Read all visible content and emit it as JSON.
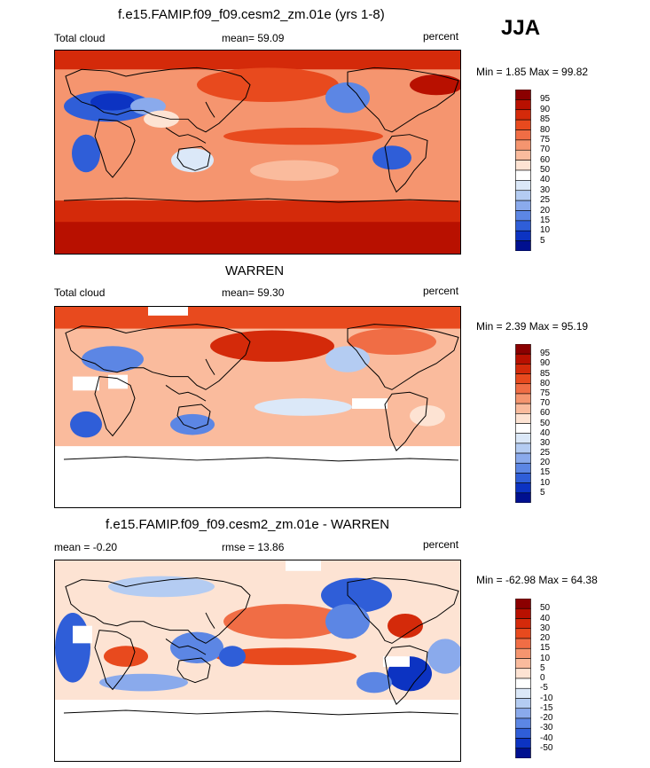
{
  "season": "JJA",
  "panels": [
    {
      "title": "f.e15.FAMIP.f09_f09.cesm2_zm.01e (yrs 1-8)",
      "left_label": "Total cloud",
      "center_label": "mean=  59.09",
      "right_label": "percent",
      "minmax": "Min =   1.85 Max =  99.82"
    },
    {
      "title": "WARREN",
      "left_label": "Total cloud",
      "center_label": "mean=  59.30",
      "right_label": "percent",
      "minmax": "Min =   2.39 Max =  95.19"
    },
    {
      "title": "f.e15.FAMIP.f09_f09.cesm2_zm.01e - WARREN",
      "left_label": "mean =  -0.20",
      "center_label": "rmse =  13.86",
      "right_label": "percent",
      "minmax": "Min = -62.98 Max =  64.38"
    }
  ],
  "colorbars": {
    "cloud": {
      "labels": [
        "95",
        "90",
        "85",
        "80",
        "75",
        "70",
        "60",
        "50",
        "40",
        "30",
        "25",
        "20",
        "15",
        "10",
        "5"
      ],
      "colors": [
        "#8b0000",
        "#b81000",
        "#d42a0a",
        "#e84a1e",
        "#f06d45",
        "#f5956f",
        "#fabb9d",
        "#fde3d3",
        "#ffffff",
        "#dbe8f8",
        "#b4ccf2",
        "#8aaaec",
        "#5c86e4",
        "#2f5ed8",
        "#0c33c2",
        "#001090"
      ]
    },
    "diff": {
      "labels": [
        "50",
        "40",
        "30",
        "20",
        "15",
        "10",
        "5",
        "0",
        "-5",
        "-10",
        "-15",
        "-20",
        "-30",
        "-40",
        "-50"
      ],
      "colors": [
        "#8b0000",
        "#b81000",
        "#d42a0a",
        "#e84a1e",
        "#f06d45",
        "#f5956f",
        "#fabb9d",
        "#fde3d3",
        "#ffffff",
        "#dbe8f8",
        "#b4ccf2",
        "#8aaaec",
        "#5c86e4",
        "#2f5ed8",
        "#0c33c2",
        "#001090"
      ]
    }
  },
  "chart_data": [
    {
      "type": "heatmap",
      "title": "f.e15.FAMIP.f09_f09.cesm2_zm.01e (yrs 1-8)",
      "variable": "Total cloud",
      "units": "percent",
      "mean": 59.09,
      "min": 1.85,
      "max": 99.82,
      "levels": [
        5,
        10,
        15,
        20,
        25,
        30,
        40,
        50,
        60,
        70,
        75,
        80,
        85,
        90,
        95
      ]
    },
    {
      "type": "heatmap",
      "title": "WARREN",
      "variable": "Total cloud",
      "units": "percent",
      "mean": 59.3,
      "min": 2.39,
      "max": 95.19,
      "levels": [
        5,
        10,
        15,
        20,
        25,
        30,
        40,
        50,
        60,
        70,
        75,
        80,
        85,
        90,
        95
      ]
    },
    {
      "type": "heatmap",
      "title": "f.e15.FAMIP.f09_f09.cesm2_zm.01e - WARREN",
      "units": "percent",
      "mean": -0.2,
      "rmse": 13.86,
      "min": -62.98,
      "max": 64.38,
      "levels": [
        -50,
        -40,
        -30,
        -20,
        -15,
        -10,
        -5,
        0,
        5,
        10,
        15,
        20,
        30,
        40,
        50
      ]
    }
  ]
}
